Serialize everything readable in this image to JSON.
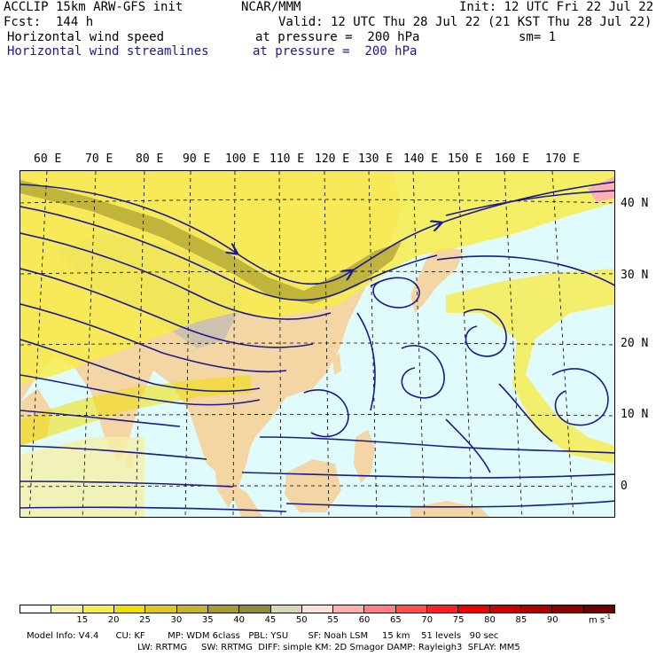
{
  "header": {
    "model": "ACCLIP 15km ARW-GFS init",
    "org": "NCAR/MMM",
    "init": "Init: 12 UTC Fri 22 Jul 22",
    "fcst": "Fcst:  144 h",
    "valid": "Valid: 12 UTC Thu 28 Jul 22 (21 KST Thu 28 Jul 22)",
    "field1": "Horizontal wind speed",
    "pressure1": "at pressure =  200 hPa",
    "sm": "sm= 1",
    "field2": "Horizontal wind streamlines",
    "pressure2": "at pressure =  200 hPa"
  },
  "map": {
    "lon_labels": [
      "60 E",
      "70 E",
      "80 E",
      "90 E",
      "100 E",
      "110 E",
      "120 E",
      "130 E",
      "140 E",
      "150 E",
      "160 E",
      "170 E"
    ],
    "lat_labels": [
      "40 N",
      "30 N",
      "20 N",
      "10 N",
      "0"
    ],
    "colors": {
      "ocean": "#e0fbfb",
      "land": "#f4d6a4",
      "high_terrain": "#c8c0b0",
      "streamline": "#1a1a8c",
      "grid": "#000000"
    }
  },
  "colorbar": {
    "ticks": [
      "15",
      "20",
      "25",
      "30",
      "35",
      "40",
      "45",
      "50",
      "55",
      "60",
      "65",
      "70",
      "75",
      "80",
      "85",
      "90"
    ],
    "unit": "m s",
    "unit_exp": "-1",
    "colors": [
      "#ffffff",
      "#f5f0a8",
      "#f7ec4a",
      "#f0e000",
      "#e0c820",
      "#c8b428",
      "#a89c30",
      "#8c8c3c",
      "#d8d8b8",
      "#ffe0e0",
      "#ffb0b0",
      "#ff8080",
      "#ff5050",
      "#ff2020",
      "#ee0000",
      "#cc0000",
      "#b00000",
      "#900000",
      "#700000"
    ]
  },
  "footer": {
    "line1": "Model Info: V4.4      CU: KF        MP: WDM 6class   PBL: YSU       SF: Noah LSM     15 km    51 levels   90 sec",
    "line2": "LW: RRTMG     SW: RRTMG  DIFF: simple KM: 2D Smagor DAMP: Rayleigh3  SFLAY: MM5"
  }
}
